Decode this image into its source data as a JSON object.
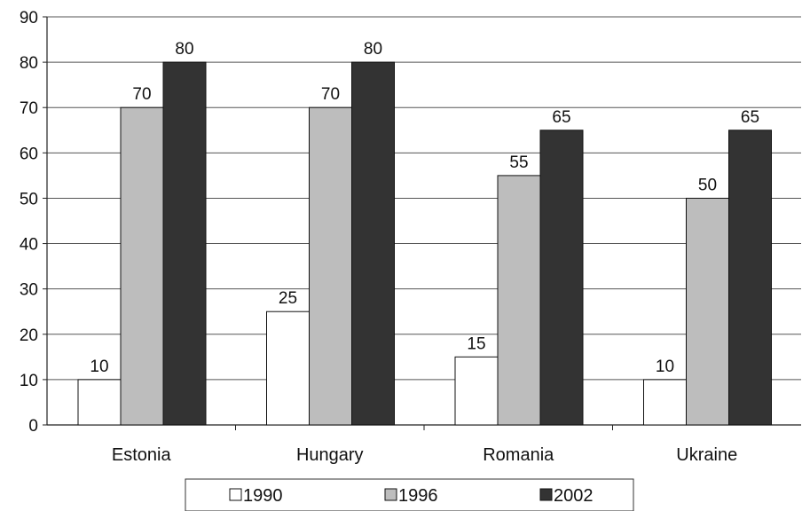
{
  "chart_data": {
    "type": "bar",
    "title": "",
    "xlabel": "",
    "ylabel": "",
    "categories": [
      "Estonia",
      "Hungary",
      "Romania",
      "Ukraine"
    ],
    "series": [
      {
        "name": "1990",
        "values": [
          10,
          25,
          15,
          10
        ],
        "color": "#ffffff"
      },
      {
        "name": "1996",
        "values": [
          70,
          70,
          55,
          50
        ],
        "color": "#bdbdbd"
      },
      {
        "name": "2002",
        "values": [
          80,
          80,
          65,
          65
        ],
        "color": "#333333"
      }
    ],
    "ylim": [
      0,
      90
    ],
    "yticks": [
      0,
      10,
      20,
      30,
      40,
      50,
      60,
      70,
      80,
      90
    ],
    "grid": true,
    "data_labels": true,
    "legend_position": "bottom"
  }
}
